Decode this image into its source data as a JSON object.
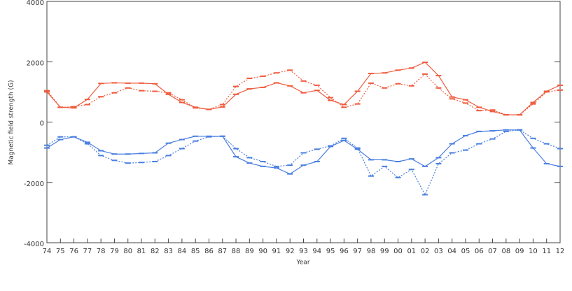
{
  "chart_data": {
    "type": "line",
    "y_label": "Magnetic field strength (G)",
    "x_label": "Year",
    "categories": [
      "74",
      "75",
      "76",
      "77",
      "78",
      "79",
      "80",
      "81",
      "82",
      "83",
      "84",
      "85",
      "86",
      "87",
      "88",
      "89",
      "90",
      "91",
      "92",
      "93",
      "94",
      "95",
      "96",
      "97",
      "98",
      "99",
      "00",
      "01",
      "02",
      "03",
      "04",
      "05",
      "06",
      "07",
      "08",
      "09",
      "10",
      "11",
      "12"
    ],
    "ylim": [
      -4000,
      4000
    ],
    "yticks": [
      -4000,
      -2000,
      0,
      2000,
      4000
    ],
    "series": [
      {
        "color": "#ef5b3d",
        "style": "solid",
        "values": [
          1000,
          490,
          470,
          750,
          1280,
          1300,
          1290,
          1290,
          1270,
          920,
          650,
          490,
          420,
          500,
          920,
          1100,
          1150,
          1300,
          1200,
          970,
          1050,
          720,
          580,
          1020,
          1610,
          1630,
          1720,
          1790,
          1980,
          1540,
          830,
          740,
          490,
          350,
          240,
          240,
          650,
          1020,
          1220
        ]
      },
      {
        "color": "#ef5b3d",
        "style": "dotted",
        "values": [
          1040,
          490,
          510,
          580,
          840,
          970,
          1130,
          1040,
          1020,
          970,
          740,
          470,
          420,
          580,
          1180,
          1450,
          1520,
          1630,
          1720,
          1360,
          1220,
          810,
          490,
          600,
          1290,
          1130,
          1270,
          1200,
          1590,
          1130,
          770,
          630,
          380,
          400,
          240,
          240,
          600,
          1000,
          1060
        ]
      },
      {
        "color": "#4a7fe0",
        "style": "solid",
        "values": [
          -860,
          -580,
          -490,
          -670,
          -950,
          -1060,
          -1060,
          -1040,
          -1020,
          -700,
          -580,
          -470,
          -470,
          -470,
          -1150,
          -1360,
          -1470,
          -1520,
          -1720,
          -1430,
          -1310,
          -810,
          -610,
          -900,
          -1250,
          -1250,
          -1310,
          -1220,
          -1470,
          -1180,
          -720,
          -450,
          -310,
          -290,
          -260,
          -260,
          -860,
          -1380,
          -1470
        ]
      },
      {
        "color": "#4a7fe0",
        "style": "dotted",
        "values": [
          -770,
          -490,
          -490,
          -720,
          -1110,
          -1270,
          -1360,
          -1340,
          -1310,
          -1110,
          -880,
          -630,
          -490,
          -470,
          -880,
          -1180,
          -1310,
          -1470,
          -1430,
          -1020,
          -900,
          -790,
          -540,
          -860,
          -1790,
          -1470,
          -1840,
          -1570,
          -2410,
          -1380,
          -1020,
          -930,
          -720,
          -560,
          -310,
          -260,
          -540,
          -720,
          -880
        ]
      }
    ]
  }
}
